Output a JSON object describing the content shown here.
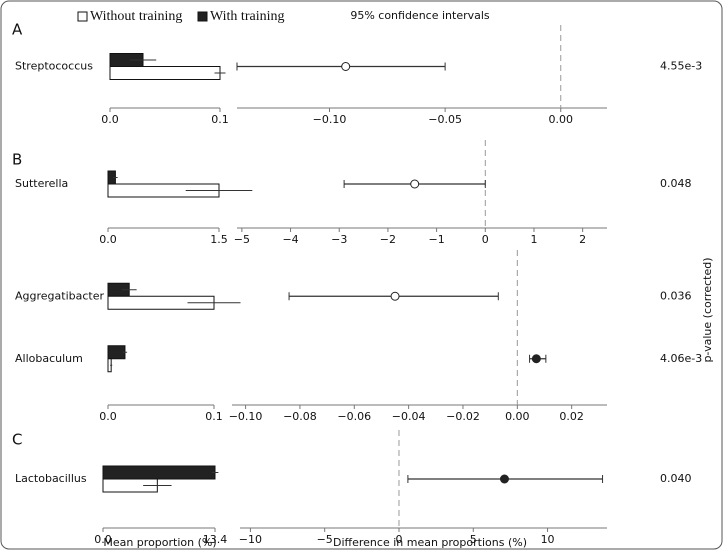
{
  "legend": [
    {
      "name": "Without training",
      "color": "#ffffff"
    },
    {
      "name": "With training",
      "color": "#222222"
    }
  ],
  "ci_label": "95% confidence intervals",
  "xlabel_left": "Mean proportion (%)",
  "xlabel_right": "Difference in mean proportions (%)",
  "pvalue_label": "p-value (corrected)",
  "chart_data": [
    {
      "type": "bar",
      "panel": "A",
      "categories": [
        "Streptococcus"
      ],
      "without": {
        "values": [
          0.1
        ],
        "errors": [
          0.005
        ]
      },
      "with": {
        "values": [
          0.03
        ],
        "errors": [
          0.012
        ]
      },
      "xlim": [
        0,
        0.1
      ],
      "xticks": [
        {
          "value": 0,
          "label": "0.0"
        },
        0.1
      ],
      "diff": {
        "values": [
          -0.093
        ],
        "lower": [
          -0.14
        ],
        "upper": [
          -0.05
        ],
        "colors": [
          "#ffffff"
        ],
        "xlim": [
          -0.14,
          0.02
        ],
        "xticks": [
          {
            "value": -0.1,
            "label": "−0.10"
          },
          {
            "value": -0.05,
            "label": "−0.05"
          },
          {
            "value": 0,
            "label": "0.00"
          }
        ]
      },
      "pvalues": [
        "4.55e-3"
      ]
    },
    {
      "type": "bar",
      "panel": "B",
      "categories": [
        "Sutterella"
      ],
      "without": {
        "values": [
          1.5
        ],
        "errors": [
          0.45
        ]
      },
      "with": {
        "values": [
          0.1
        ],
        "errors": [
          0.03
        ]
      },
      "xlim": [
        0,
        1.5
      ],
      "xticks": [
        {
          "value": 0,
          "label": "0.0"
        },
        1.5
      ],
      "diff": {
        "values": [
          -1.45
        ],
        "lower": [
          -2.9
        ],
        "upper": [
          0
        ],
        "colors": [
          "#ffffff"
        ],
        "xlim": [
          -5.1,
          2.5
        ],
        "xticks": [
          {
            "value": -5,
            "label": "−5"
          },
          {
            "value": -4,
            "label": "−4"
          },
          {
            "value": -3,
            "label": "−3"
          },
          {
            "value": -2,
            "label": "−2"
          },
          {
            "value": -1,
            "label": "−1"
          },
          0,
          1,
          2
        ]
      },
      "pvalues": [
        "0.048"
      ]
    },
    {
      "type": "bar",
      "categories": [
        "Aggregatibacter",
        "Allobaculum"
      ],
      "without": {
        "values": [
          0.1,
          0.003
        ],
        "errors": [
          0.025,
          0.001
        ]
      },
      "with": {
        "values": [
          0.02,
          0.016
        ],
        "errors": [
          0.007,
          0.002
        ]
      },
      "xlim": [
        0,
        0.1
      ],
      "xticks": [
        {
          "value": 0,
          "label": "0.0"
        },
        0.1
      ],
      "diff": {
        "values": [
          -0.045,
          0.007
        ],
        "lower": [
          -0.084,
          0.0045
        ],
        "upper": [
          -0.007,
          0.0105
        ],
        "colors": [
          "#ffffff",
          "#222222"
        ],
        "xlim": [
          -0.105,
          0.033
        ],
        "xticks": [
          {
            "value": -0.1,
            "label": "−0.10"
          },
          {
            "value": -0.08,
            "label": "−0.08"
          },
          {
            "value": -0.06,
            "label": "−0.06"
          },
          {
            "value": -0.04,
            "label": "−0.04"
          },
          {
            "value": -0.02,
            "label": "−0.02"
          },
          {
            "value": 0,
            "label": "0.00"
          },
          0.02
        ]
      },
      "pvalues": [
        "0.036",
        "4.06e-3"
      ]
    },
    {
      "type": "bar",
      "panel": "C",
      "categories": [
        "Lactobacillus"
      ],
      "without": {
        "values": [
          6.5
        ],
        "errors": [
          1.7
        ]
      },
      "with": {
        "values": [
          13.4
        ],
        "errors": [
          0.4
        ]
      },
      "xlim": [
        0,
        13.4
      ],
      "xticks": [
        {
          "value": 0,
          "label": "0.0"
        },
        13.4
      ],
      "diff": {
        "values": [
          7.1
        ],
        "lower": [
          0.6
        ],
        "upper": [
          13.7
        ],
        "colors": [
          "#222222"
        ],
        "xlim": [
          -10.7,
          14
        ],
        "xticks": [
          {
            "value": -10,
            "label": "−10"
          },
          {
            "value": -5,
            "label": "−5"
          },
          0,
          5,
          10
        ]
      },
      "pvalues": [
        "0.040"
      ]
    }
  ]
}
